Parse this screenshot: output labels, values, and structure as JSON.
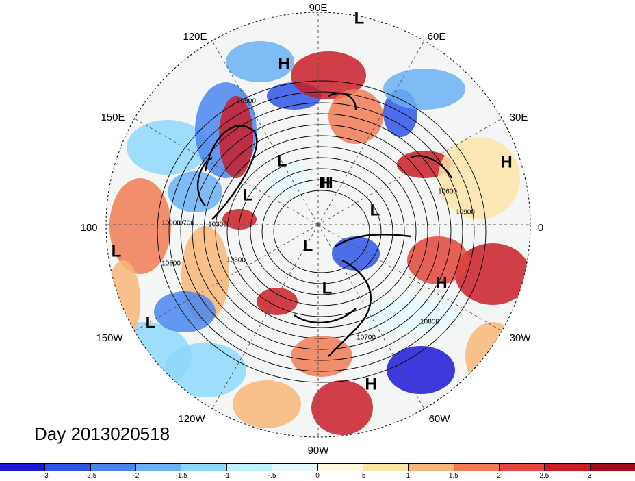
{
  "title": "Day 2013020518",
  "map": {
    "projection": "north-polar-stereographic",
    "longitude_labels": [
      "90E",
      "60E",
      "30E",
      "0",
      "30W",
      "60W",
      "90W",
      "120W",
      "150W",
      "180",
      "150E",
      "120E"
    ],
    "pressure_systems": [
      "L",
      "H",
      "H",
      "L",
      "H",
      "L",
      "L",
      "L",
      "L",
      "H",
      "L",
      "L",
      "H",
      "H"
    ],
    "contour_labels": [
      "10900",
      "10700",
      "10800",
      "10300",
      "10800",
      "10800",
      "10700",
      "10600",
      "10900",
      "10900"
    ]
  },
  "colorbar": {
    "tick_labels": [
      "-3",
      "-2.5",
      "-2",
      "-1.5",
      "-1",
      "-.5",
      "0",
      ".5",
      "1",
      "1.5",
      "2",
      "2.5",
      "3"
    ],
    "colors": [
      "#1d17d6",
      "#2f55e6",
      "#4a86ee",
      "#6ab0f5",
      "#8ed8fb",
      "#bff0fd",
      "#e6fafe",
      "#fefae0",
      "#fde5a8",
      "#f8b779",
      "#ef7b55",
      "#e2463c",
      "#c91d28",
      "#a00e1c"
    ]
  }
}
